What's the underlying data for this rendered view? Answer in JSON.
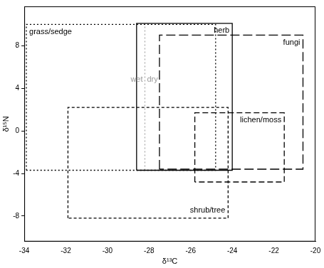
{
  "chart_data": {
    "type": "range_boxes",
    "x_label": "δ¹³C",
    "y_label": "δ¹⁵N",
    "xlim": [
      -34,
      -20
    ],
    "xticks": [
      -34,
      -32,
      -30,
      -28,
      -26,
      -24,
      -22,
      -20
    ],
    "ylim": [
      -10.4,
      11.7
    ],
    "yticks": [
      -8,
      -4,
      0,
      4,
      8
    ],
    "grid": false,
    "series": [
      {
        "name": "grass/sedge",
        "color": "#000000",
        "line_style": "dotted",
        "x_range": [
          -33.9,
          -24.8
        ],
        "y_range": [
          -3.7,
          10.0
        ]
      },
      {
        "name": "herb",
        "color": "#000000",
        "line_style": "solid",
        "x_range": [
          -28.6,
          -24.0
        ],
        "y_range": [
          -3.7,
          10.1
        ]
      },
      {
        "name": "fungi",
        "color": "#000000",
        "line_style": "longdash",
        "x_range": [
          -27.5,
          -20.6
        ],
        "y_range": [
          -3.6,
          9.0
        ]
      },
      {
        "name": "lichen/moss",
        "color": "#000000",
        "line_style": "dashed",
        "x_range": [
          -25.8,
          -21.5
        ],
        "y_range": [
          -4.8,
          1.7
        ]
      },
      {
        "name": "shrub/tree",
        "color": "#000000",
        "line_style": "shortdash",
        "x_range": [
          -31.9,
          -24.2
        ],
        "y_range": [
          -8.2,
          2.2
        ]
      }
    ],
    "divider": {
      "x": -28.2,
      "y_range": [
        -3.7,
        10.1
      ],
      "labels": [
        "wet",
        "dry"
      ],
      "color": "#999999",
      "line_style": "dotted"
    }
  }
}
